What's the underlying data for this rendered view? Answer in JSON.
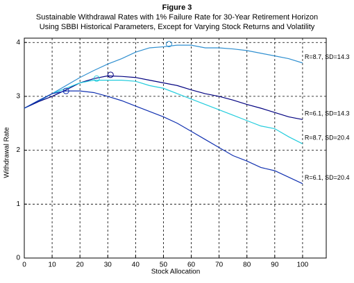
{
  "chart_data": {
    "type": "line",
    "title": "Figure 3",
    "subtitle": [
      "Sustainable Withdrawal Rates with 1% Failure Rate for 30-Year Retirement Horizon",
      "Using SBBI Historical Parameters, Except for Varying Stock Returns and Volatility"
    ],
    "x_label": "Stock Allocation",
    "y_label": "Withdrawal Rate",
    "x": [
      0,
      5,
      10,
      15,
      20,
      25,
      30,
      35,
      40,
      45,
      50,
      55,
      60,
      65,
      70,
      75,
      80,
      85,
      90,
      95,
      100
    ],
    "series": [
      {
        "name": "R=8.7, SD=14.3",
        "color": "#2f8fd0",
        "values": [
          2.78,
          2.9,
          3.05,
          3.2,
          3.35,
          3.48,
          3.6,
          3.7,
          3.82,
          3.9,
          3.92,
          3.95,
          3.95,
          3.9,
          3.9,
          3.88,
          3.85,
          3.8,
          3.75,
          3.7,
          3.62
        ],
        "peak": [
          52,
          3.97
        ]
      },
      {
        "name": "R=6.1, SD=14.3",
        "color": "#000080",
        "values": [
          2.78,
          2.9,
          3.0,
          3.12,
          3.25,
          3.33,
          3.38,
          3.37,
          3.35,
          3.3,
          3.25,
          3.2,
          3.12,
          3.05,
          3.0,
          2.93,
          2.85,
          2.78,
          2.7,
          2.62,
          2.57
        ],
        "peak": [
          31,
          3.4
        ]
      },
      {
        "name": "R=8.7, SD=20.4",
        "color": "#22ccdd",
        "values": [
          2.78,
          2.92,
          3.05,
          3.15,
          3.25,
          3.3,
          3.3,
          3.3,
          3.28,
          3.2,
          3.15,
          3.05,
          2.95,
          2.85,
          2.75,
          2.65,
          2.55,
          2.45,
          2.4,
          2.25,
          2.12
        ],
        "peak": [
          26,
          3.33
        ]
      },
      {
        "name": "R=6.1, SD=20.4",
        "color": "#1030b0",
        "values": [
          2.78,
          2.92,
          3.05,
          3.1,
          3.1,
          3.07,
          3.0,
          2.92,
          2.82,
          2.72,
          2.62,
          2.5,
          2.35,
          2.2,
          2.05,
          1.9,
          1.8,
          1.68,
          1.62,
          1.5,
          1.38
        ],
        "peak": [
          15,
          3.1
        ]
      }
    ],
    "xlim": [
      0,
      108.5
    ],
    "ylim": [
      0,
      4.08
    ],
    "xticks": [
      0,
      10,
      20,
      30,
      40,
      50,
      60,
      70,
      80,
      90,
      100
    ],
    "yticks": [
      0,
      1,
      2,
      3,
      4
    ],
    "grid": true
  }
}
